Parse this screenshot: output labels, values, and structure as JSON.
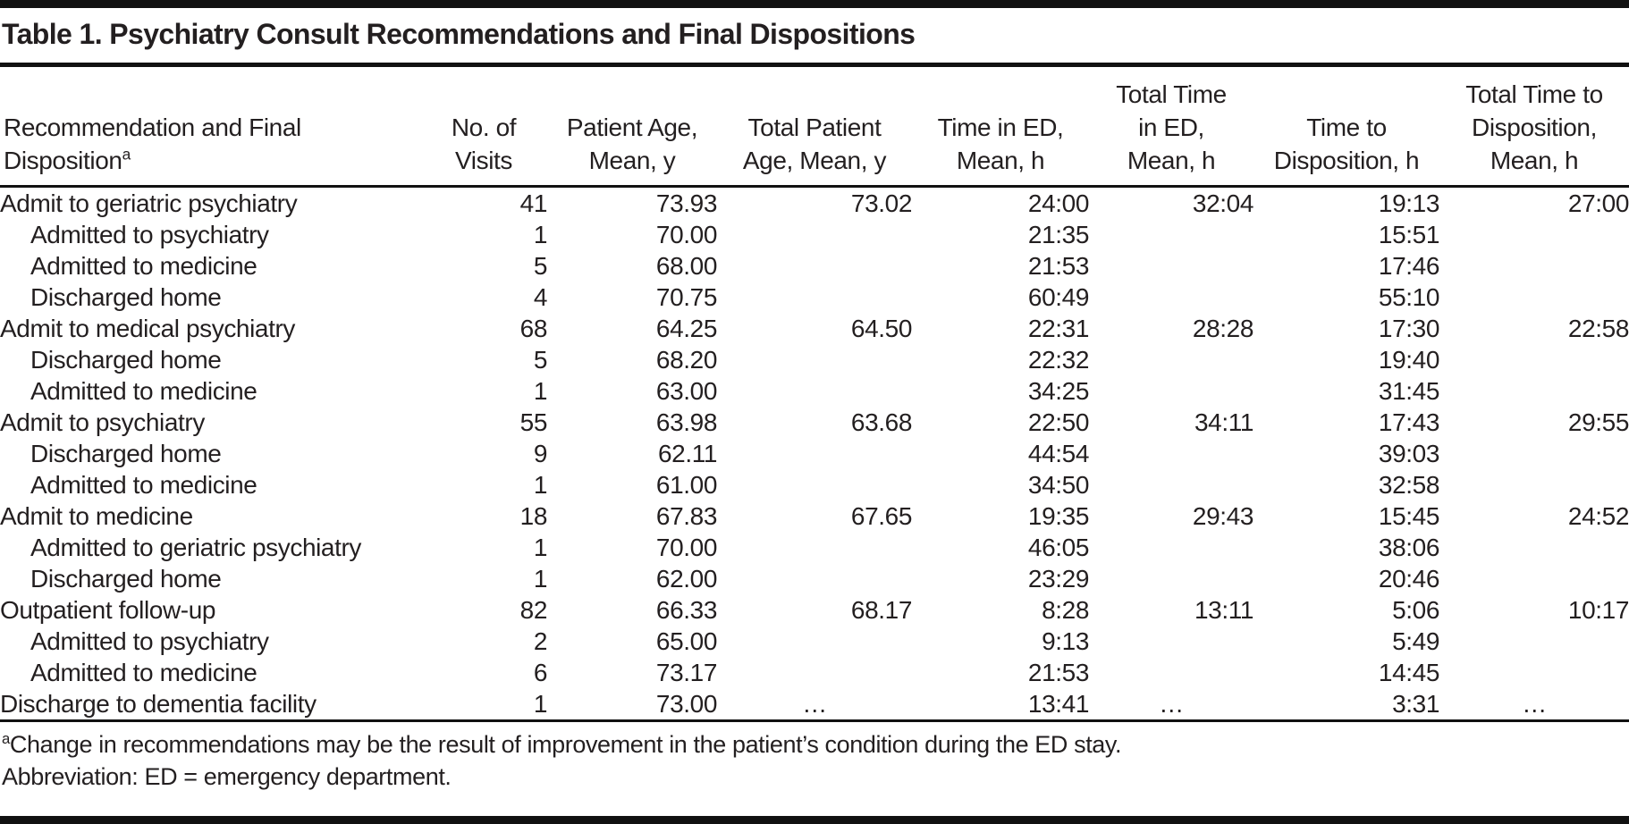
{
  "title": "Table 1. Psychiatry Consult Recommendations and Final Dispositions",
  "table": {
    "columns": [
      {
        "id": "label",
        "lines": [
          "Recommendation and Final",
          "Disposition"
        ],
        "sup": "a"
      },
      {
        "id": "visits",
        "lines": [
          "No. of",
          "Visits"
        ]
      },
      {
        "id": "age",
        "lines": [
          "Patient Age,",
          "Mean, y"
        ]
      },
      {
        "id": "total_age",
        "lines": [
          "Total Patient",
          "Age, Mean, y"
        ]
      },
      {
        "id": "time_ed",
        "lines": [
          "Time in ED,",
          "Mean, h"
        ]
      },
      {
        "id": "total_time_ed",
        "lines": [
          "Total Time",
          "in ED,",
          "Mean, h"
        ]
      },
      {
        "id": "time_dispo",
        "lines": [
          "Time to",
          "Disposition, h"
        ]
      },
      {
        "id": "total_time_dispo",
        "lines": [
          "Total Time to",
          "Disposition,",
          "Mean, h"
        ]
      }
    ],
    "rows": [
      {
        "label": "Admit to geriatric psychiatry",
        "indent": false,
        "visits": "41",
        "age": "73.93",
        "total_age": "73.02",
        "time_ed": "24:00",
        "total_time_ed": "32:04",
        "time_dispo": "19:13",
        "total_time_dispo": "27:00"
      },
      {
        "label": "Admitted to psychiatry",
        "indent": true,
        "visits": "1",
        "age": "70.00",
        "total_age": "",
        "time_ed": "21:35",
        "total_time_ed": "",
        "time_dispo": "15:51",
        "total_time_dispo": ""
      },
      {
        "label": "Admitted to medicine",
        "indent": true,
        "visits": "5",
        "age": "68.00",
        "total_age": "",
        "time_ed": "21:53",
        "total_time_ed": "",
        "time_dispo": "17:46",
        "total_time_dispo": ""
      },
      {
        "label": "Discharged home",
        "indent": true,
        "visits": "4",
        "age": "70.75",
        "total_age": "",
        "time_ed": "60:49",
        "total_time_ed": "",
        "time_dispo": "55:10",
        "total_time_dispo": ""
      },
      {
        "label": "Admit to medical psychiatry",
        "indent": false,
        "visits": "68",
        "age": "64.25",
        "total_age": "64.50",
        "time_ed": "22:31",
        "total_time_ed": "28:28",
        "time_dispo": "17:30",
        "total_time_dispo": "22:58"
      },
      {
        "label": "Discharged home",
        "indent": true,
        "visits": "5",
        "age": "68.20",
        "total_age": "",
        "time_ed": "22:32",
        "total_time_ed": "",
        "time_dispo": "19:40",
        "total_time_dispo": ""
      },
      {
        "label": "Admitted to medicine",
        "indent": true,
        "visits": "1",
        "age": "63.00",
        "total_age": "",
        "time_ed": "34:25",
        "total_time_ed": "",
        "time_dispo": "31:45",
        "total_time_dispo": ""
      },
      {
        "label": "Admit to psychiatry",
        "indent": false,
        "visits": "55",
        "age": "63.98",
        "total_age": "63.68",
        "time_ed": "22:50",
        "total_time_ed": "34:11",
        "time_dispo": "17:43",
        "total_time_dispo": "29:55"
      },
      {
        "label": "Discharged home",
        "indent": true,
        "visits": "9",
        "age": "62.11",
        "total_age": "",
        "time_ed": "44:54",
        "total_time_ed": "",
        "time_dispo": "39:03",
        "total_time_dispo": ""
      },
      {
        "label": "Admitted to medicine",
        "indent": true,
        "visits": "1",
        "age": "61.00",
        "total_age": "",
        "time_ed": "34:50",
        "total_time_ed": "",
        "time_dispo": "32:58",
        "total_time_dispo": ""
      },
      {
        "label": "Admit to medicine",
        "indent": false,
        "visits": "18",
        "age": "67.83",
        "total_age": "67.65",
        "time_ed": "19:35",
        "total_time_ed": "29:43",
        "time_dispo": "15:45",
        "total_time_dispo": "24:52"
      },
      {
        "label": "Admitted to geriatric psychiatry",
        "indent": true,
        "visits": "1",
        "age": "70.00",
        "total_age": "",
        "time_ed": "46:05",
        "total_time_ed": "",
        "time_dispo": "38:06",
        "total_time_dispo": ""
      },
      {
        "label": "Discharged home",
        "indent": true,
        "visits": "1",
        "age": "62.00",
        "total_age": "",
        "time_ed": "23:29",
        "total_time_ed": "",
        "time_dispo": "20:46",
        "total_time_dispo": ""
      },
      {
        "label": "Outpatient follow-up",
        "indent": false,
        "visits": "82",
        "age": "66.33",
        "total_age": "68.17",
        "time_ed": "8:28",
        "total_time_ed": "13:11",
        "time_dispo": "5:06",
        "total_time_dispo": "10:17"
      },
      {
        "label": "Admitted to psychiatry",
        "indent": true,
        "visits": "2",
        "age": "65.00",
        "total_age": "",
        "time_ed": "9:13",
        "total_time_ed": "",
        "time_dispo": "5:49",
        "total_time_dispo": ""
      },
      {
        "label": "Admitted to medicine",
        "indent": true,
        "visits": "6",
        "age": "73.17",
        "total_age": "",
        "time_ed": "21:53",
        "total_time_ed": "",
        "time_dispo": "14:45",
        "total_time_dispo": ""
      },
      {
        "label": "Discharge to dementia facility",
        "indent": false,
        "visits": "1",
        "age": "73.00",
        "total_age": "…",
        "time_ed": "13:41",
        "total_time_ed": "…",
        "time_dispo": "3:31",
        "total_time_dispo": "…"
      }
    ]
  },
  "footnotes": [
    {
      "sup": "a",
      "text": "Change in recommendations may be the result of improvement in the patient’s condition during the ED stay."
    },
    {
      "sup": "",
      "text": "Abbreviation: ED = emergency department."
    }
  ]
}
